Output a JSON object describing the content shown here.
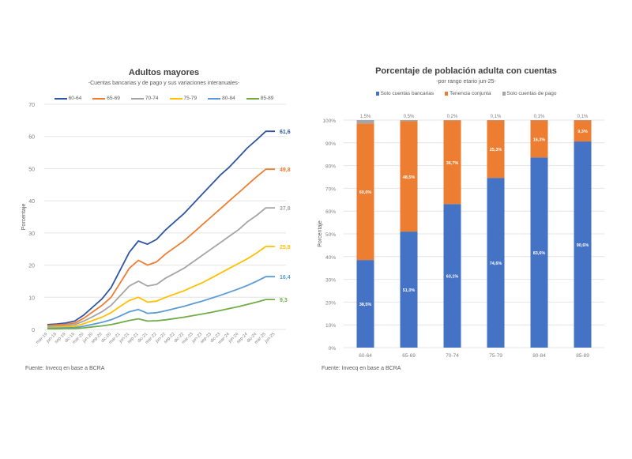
{
  "chart_data": [
    {
      "type": "line",
      "title": "Adultos mayores",
      "subtitle": "-Cuentas bancarias y de pago y sus variaciones interanuales-",
      "xlabel": "",
      "ylabel": "Porcentaje",
      "ylim": [
        0,
        70
      ],
      "yticks": [
        "0",
        "10",
        "20",
        "30",
        "40",
        "50",
        "60",
        "70"
      ],
      "grid": true,
      "legend": "top",
      "x": [
        "mar-19",
        "jun-19",
        "sep-19",
        "dic-19",
        "mar-20",
        "jun-20",
        "sep-20",
        "dic-20",
        "mar-21",
        "jun-21",
        "sep-21",
        "dic-21",
        "mar-22",
        "jun-22",
        "sep-22",
        "dic-22",
        "mar-23",
        "jun-23",
        "sep-23",
        "dic-23",
        "mar-24",
        "jun-24",
        "sep-24",
        "dic-24",
        "mar-25",
        "jun-25"
      ],
      "series": [
        {
          "name": "60-64",
          "color": "#2f55a4",
          "end_label": "61,6",
          "values": [
            1.5,
            1.7,
            2.0,
            2.6,
            4.5,
            7.0,
            9.5,
            13.0,
            18.5,
            24.0,
            27.5,
            26.5,
            28.0,
            31.0,
            33.5,
            36.0,
            39.0,
            42.0,
            45.0,
            48.0,
            50.5,
            53.5,
            56.5,
            59.0,
            61.6,
            61.6
          ]
        },
        {
          "name": "65-69",
          "color": "#ed7d31",
          "end_label": "49,8",
          "values": [
            1.2,
            1.4,
            1.6,
            2.0,
            3.5,
            5.5,
            7.5,
            10.0,
            14.5,
            19.0,
            21.5,
            20.0,
            21.0,
            23.5,
            25.5,
            27.5,
            30.0,
            32.5,
            35.0,
            37.5,
            40.0,
            42.5,
            45.0,
            47.5,
            49.8,
            49.8
          ]
        },
        {
          "name": "70-74",
          "color": "#a5a5a5",
          "end_label": "37,8",
          "values": [
            0.9,
            1.0,
            1.2,
            1.5,
            2.6,
            4.0,
            5.5,
            7.5,
            10.5,
            13.5,
            15.0,
            13.5,
            14.0,
            16.0,
            17.5,
            19.0,
            21.0,
            23.0,
            25.0,
            27.0,
            29.0,
            31.0,
            33.5,
            35.5,
            37.8,
            37.8
          ]
        },
        {
          "name": "75-79",
          "color": "#ffc000",
          "end_label": "25,8",
          "values": [
            0.6,
            0.7,
            0.8,
            1.0,
            1.8,
            2.8,
            3.8,
            5.2,
            7.2,
            9.0,
            10.0,
            8.5,
            8.8,
            10.0,
            11.0,
            12.0,
            13.3,
            14.5,
            16.0,
            17.5,
            19.0,
            20.5,
            22.0,
            23.8,
            25.8,
            25.8
          ]
        },
        {
          "name": "80-84",
          "color": "#5b9bd5",
          "end_label": "16,4",
          "values": [
            0.4,
            0.4,
            0.5,
            0.6,
            1.0,
            1.6,
            2.2,
            3.0,
            4.2,
            5.5,
            6.2,
            5.0,
            5.2,
            5.8,
            6.5,
            7.2,
            8.0,
            8.8,
            9.7,
            10.6,
            11.6,
            12.6,
            13.7,
            15.0,
            16.4,
            16.4
          ]
        },
        {
          "name": "85-89",
          "color": "#70ad47",
          "end_label": "9,3",
          "values": [
            0.2,
            0.2,
            0.3,
            0.3,
            0.5,
            0.8,
            1.1,
            1.5,
            2.1,
            2.8,
            3.3,
            2.6,
            2.7,
            3.0,
            3.4,
            3.8,
            4.3,
            4.8,
            5.3,
            5.9,
            6.5,
            7.1,
            7.8,
            8.5,
            9.3,
            9.3
          ]
        }
      ],
      "source": "Fuente: Invecq en base a BCRA"
    },
    {
      "type": "bar",
      "stacked": true,
      "title": "Porcentaje de población adulta con cuentas",
      "subtitle": "-por rango etario jun-25-",
      "xlabel": "",
      "ylabel": "Porcentaje",
      "ylim": [
        0,
        100
      ],
      "yticks": [
        "0%",
        "10%",
        "20%",
        "30%",
        "40%",
        "50%",
        "60%",
        "70%",
        "80%",
        "90%",
        "100%"
      ],
      "grid": true,
      "legend": "top",
      "categories": [
        "60-64",
        "65-69",
        "70-74",
        "75-79",
        "80-84",
        "85-89"
      ],
      "series": [
        {
          "name": "Solo cuentas bancarias",
          "color": "#4472c4",
          "values": [
            38.5,
            51.0,
            63.1,
            74.6,
            83.6,
            90.6
          ],
          "labels": [
            "38,5%",
            "51,0%",
            "63,1%",
            "74,6%",
            "83,6%",
            "90,6%"
          ]
        },
        {
          "name": "Tenencia conjunta",
          "color": "#ed7d31",
          "values": [
            60.0,
            48.5,
            36.7,
            25.3,
            16.3,
            9.3
          ],
          "labels": [
            "60,0%",
            "48,5%",
            "36,7%",
            "25,3%",
            "16,3%",
            "9,3%"
          ]
        },
        {
          "name": "Solo cuentas de pago",
          "color": "#a5a5a5",
          "values": [
            1.5,
            0.5,
            0.2,
            0.1,
            0.1,
            0.1
          ],
          "labels": [
            "1,5%",
            "0,5%",
            "0,2%",
            "0,1%",
            "0,1%",
            "0,1%"
          ]
        }
      ],
      "source": "Fuente: Invecq en base a BCRA"
    }
  ]
}
